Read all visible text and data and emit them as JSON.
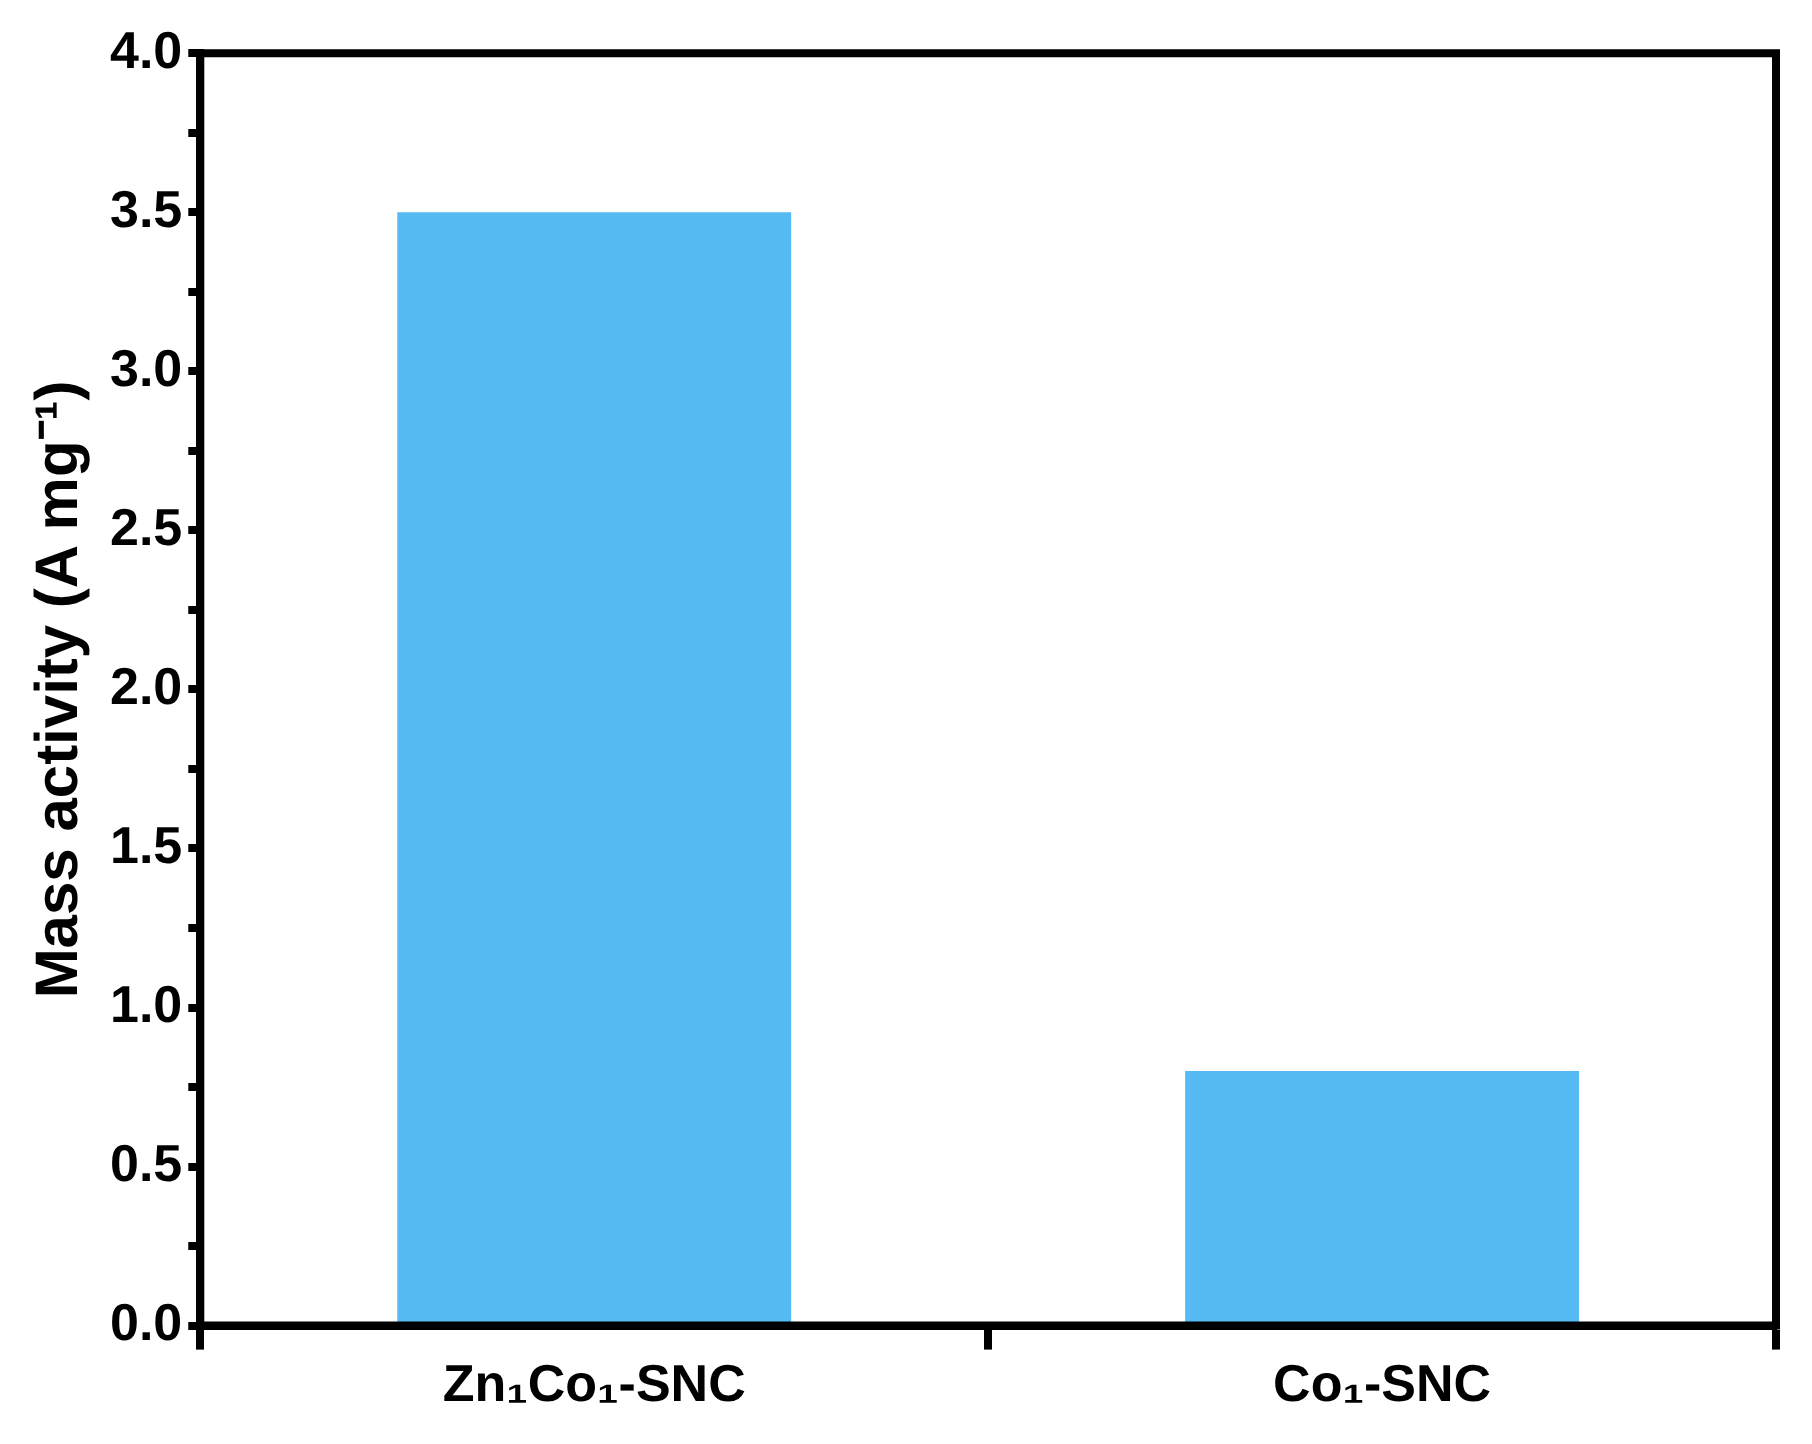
{
  "chart_data": {
    "type": "bar",
    "ylabel": "Mass activity (A mg⁻¹)",
    "categories": [
      "Zn₁Co₁-SNC",
      "Co₁-SNC"
    ],
    "values": [
      3.5,
      0.8
    ],
    "color": "#55bbf2",
    "ylim": [
      0,
      4
    ],
    "yticks": [
      {
        "value": 0,
        "label": "0.0"
      },
      {
        "value": 0.25,
        "label": null
      },
      {
        "value": 0.5,
        "label": "0.5"
      },
      {
        "value": 0.75,
        "label": null
      },
      {
        "value": 1,
        "label": "1.0"
      },
      {
        "value": 1.25,
        "label": null
      },
      {
        "value": 1.5,
        "label": "1.5"
      },
      {
        "value": 1.75,
        "label": null
      },
      {
        "value": 2,
        "label": "2.0"
      },
      {
        "value": 2.25,
        "label": null
      },
      {
        "value": 2.5,
        "label": "2.5"
      },
      {
        "value": 2.75,
        "label": null
      },
      {
        "value": 3,
        "label": "3.0"
      },
      {
        "value": 3.25,
        "label": null
      },
      {
        "value": 3.5,
        "label": "3.5"
      },
      {
        "value": 3.75,
        "label": null
      },
      {
        "value": 4,
        "label": "4.0"
      }
    ],
    "grid": false,
    "legend": false
  }
}
